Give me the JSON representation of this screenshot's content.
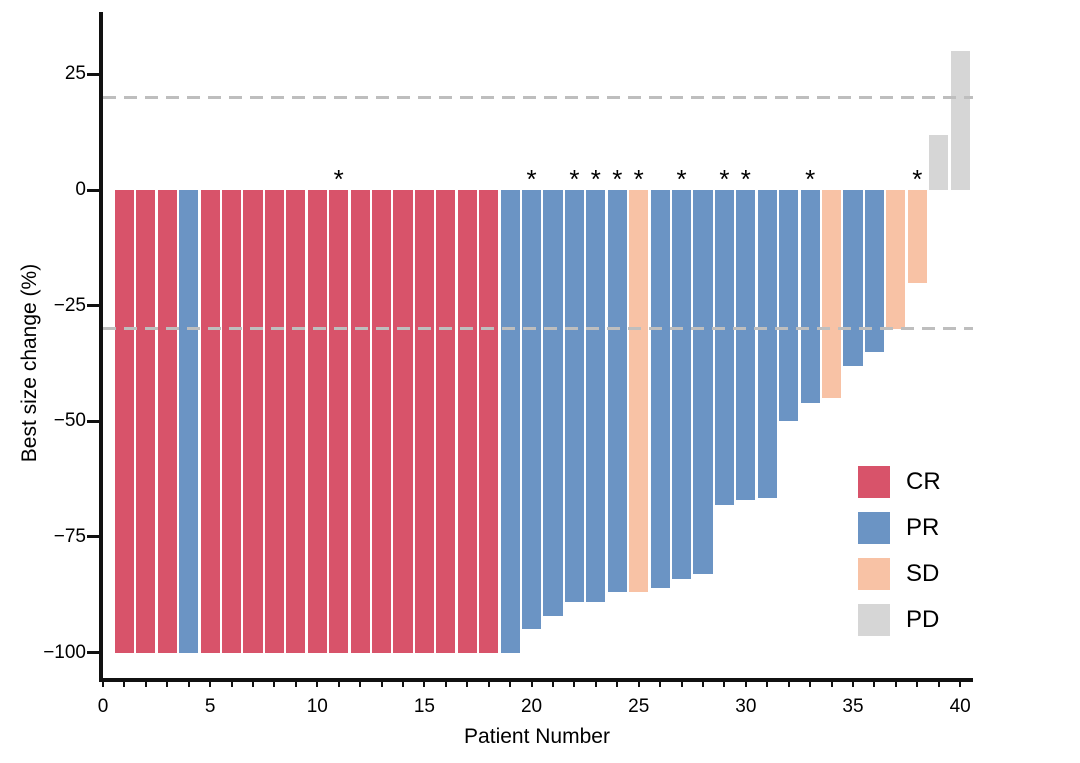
{
  "chart_data": {
    "type": "bar",
    "variant": "waterfall",
    "title": "",
    "xlabel": "Patient Number",
    "ylabel": "Best size change (%)",
    "xlim": [
      0,
      40.6
    ],
    "ylim": [
      -105.5,
      38.5
    ],
    "x_major_ticks": [
      0,
      5,
      10,
      15,
      20,
      25,
      30,
      35,
      40
    ],
    "x_minor_tick_step": 1,
    "x_minor_tick_max": 40,
    "y_ticks": [
      {
        "v": 25,
        "label": "25"
      },
      {
        "v": 0,
        "label": "0"
      },
      {
        "v": -25,
        "label": "−25"
      },
      {
        "v": -50,
        "label": "−50"
      },
      {
        "v": -75,
        "label": "−75"
      },
      {
        "v": -100,
        "label": "−100"
      }
    ],
    "reference_lines": [
      {
        "value": 20,
        "style": "dashed",
        "color": "#BEBEBE"
      },
      {
        "value": -30,
        "style": "dashed",
        "color": "#BEBEBE"
      }
    ],
    "bar_width_units": 0.9,
    "annotation_symbol": "*",
    "colors": {
      "CR": "#D8536A",
      "PR": "#6B94C4",
      "SD": "#F8C2A5",
      "PD": "#D6D6D6"
    },
    "legend": [
      {
        "key": "CR",
        "label": "CR"
      },
      {
        "key": "PR",
        "label": "PR"
      },
      {
        "key": "SD",
        "label": "SD"
      },
      {
        "key": "PD",
        "label": "PD"
      }
    ],
    "patients": [
      {
        "n": 1,
        "value": -100,
        "group": "CR",
        "star": false
      },
      {
        "n": 2,
        "value": -100,
        "group": "CR",
        "star": false
      },
      {
        "n": 3,
        "value": -100,
        "group": "CR",
        "star": false
      },
      {
        "n": 4,
        "value": -100,
        "group": "PR",
        "star": false
      },
      {
        "n": 5,
        "value": -100,
        "group": "CR",
        "star": false
      },
      {
        "n": 6,
        "value": -100,
        "group": "CR",
        "star": false
      },
      {
        "n": 7,
        "value": -100,
        "group": "CR",
        "star": false
      },
      {
        "n": 8,
        "value": -100,
        "group": "CR",
        "star": false
      },
      {
        "n": 9,
        "value": -100,
        "group": "CR",
        "star": false
      },
      {
        "n": 10,
        "value": -100,
        "group": "CR",
        "star": false
      },
      {
        "n": 11,
        "value": -100,
        "group": "CR",
        "star": true
      },
      {
        "n": 12,
        "value": -100,
        "group": "CR",
        "star": false
      },
      {
        "n": 13,
        "value": -100,
        "group": "CR",
        "star": false
      },
      {
        "n": 14,
        "value": -100,
        "group": "CR",
        "star": false
      },
      {
        "n": 15,
        "value": -100,
        "group": "CR",
        "star": false
      },
      {
        "n": 16,
        "value": -100,
        "group": "CR",
        "star": false
      },
      {
        "n": 17,
        "value": -100,
        "group": "CR",
        "star": false
      },
      {
        "n": 18,
        "value": -100,
        "group": "CR",
        "star": false
      },
      {
        "n": 19,
        "value": -100,
        "group": "PR",
        "star": false
      },
      {
        "n": 20,
        "value": -95,
        "group": "PR",
        "star": true
      },
      {
        "n": 21,
        "value": -92,
        "group": "PR",
        "star": false
      },
      {
        "n": 22,
        "value": -89,
        "group": "PR",
        "star": true
      },
      {
        "n": 23,
        "value": -89,
        "group": "PR",
        "star": true
      },
      {
        "n": 24,
        "value": -87,
        "group": "PR",
        "star": true
      },
      {
        "n": 25,
        "value": -87,
        "group": "SD",
        "star": true
      },
      {
        "n": 26,
        "value": -86,
        "group": "PR",
        "star": false
      },
      {
        "n": 27,
        "value": -84,
        "group": "PR",
        "star": true
      },
      {
        "n": 28,
        "value": -83,
        "group": "PR",
        "star": false
      },
      {
        "n": 29,
        "value": -68,
        "group": "PR",
        "star": true
      },
      {
        "n": 30,
        "value": -67,
        "group": "PR",
        "star": true
      },
      {
        "n": 31,
        "value": -66.5,
        "group": "PR",
        "star": false
      },
      {
        "n": 32,
        "value": -50,
        "group": "PR",
        "star": false
      },
      {
        "n": 33,
        "value": -46,
        "group": "PR",
        "star": true
      },
      {
        "n": 34,
        "value": -45,
        "group": "SD",
        "star": false
      },
      {
        "n": 35,
        "value": -38,
        "group": "PR",
        "star": false
      },
      {
        "n": 36,
        "value": -35,
        "group": "PR",
        "star": false
      },
      {
        "n": 37,
        "value": -30,
        "group": "SD",
        "star": false
      },
      {
        "n": 38,
        "value": -20,
        "group": "SD",
        "star": true
      },
      {
        "n": 39,
        "value": 12,
        "group": "PD",
        "star": false
      },
      {
        "n": 40,
        "value": 30,
        "group": "PD",
        "star": false
      }
    ]
  }
}
